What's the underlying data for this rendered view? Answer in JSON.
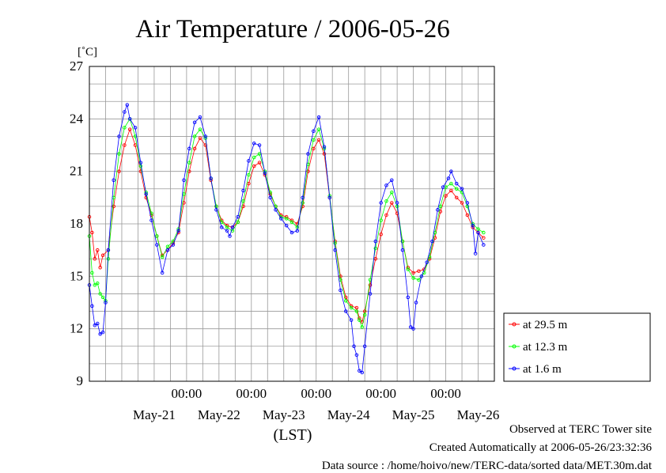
{
  "chart_data": {
    "type": "line",
    "title": "Air Temperature / 2006-05-26",
    "ylabel": "[˚C]",
    "xlabel": "(LST)",
    "ylim": [
      9,
      27
    ],
    "yticks": [
      9,
      12,
      15,
      18,
      21,
      24,
      27
    ],
    "x_domain": [
      "2006-05-20T12:00",
      "2006-05-26T18:00"
    ],
    "x_time_labels": [
      {
        "time": "2006-05-22T00:00",
        "label": "00:00"
      },
      {
        "time": "2006-05-23T00:00",
        "label": "00:00"
      },
      {
        "time": "2006-05-24T00:00",
        "label": "00:00"
      },
      {
        "time": "2006-05-25T00:00",
        "label": "00:00"
      },
      {
        "time": "2006-05-26T00:00",
        "label": "00:00"
      }
    ],
    "x_date_labels": [
      {
        "time": "2006-05-21T12:00",
        "label": "May-21"
      },
      {
        "time": "2006-05-22T12:00",
        "label": "May-22"
      },
      {
        "time": "2006-05-23T12:00",
        "label": "May-23"
      },
      {
        "time": "2006-05-24T12:00",
        "label": "May-24"
      },
      {
        "time": "2006-05-25T12:00",
        "label": "May-25"
      },
      {
        "time": "2006-05-26T12:00",
        "label": "May-26"
      }
    ],
    "grid": true,
    "legend_position": "right-bottom",
    "series": [
      {
        "name": "at 29.5 m",
        "color": "#ff0000",
        "points": [
          [
            "2006-05-20T12:00",
            18.4
          ],
          [
            "2006-05-20T13:00",
            17.5
          ],
          [
            "2006-05-20T14:00",
            16.0
          ],
          [
            "2006-05-20T15:00",
            16.5
          ],
          [
            "2006-05-20T16:00",
            15.5
          ],
          [
            "2006-05-20T17:00",
            16.2
          ],
          [
            "2006-05-20T19:00",
            16.5
          ],
          [
            "2006-05-20T21:00",
            19.0
          ],
          [
            "2006-05-20T23:00",
            21.0
          ],
          [
            "2006-05-21T01:00",
            22.5
          ],
          [
            "2006-05-21T03:00",
            23.4
          ],
          [
            "2006-05-21T05:00",
            22.5
          ],
          [
            "2006-05-21T07:00",
            21.0
          ],
          [
            "2006-05-21T09:00",
            19.5
          ],
          [
            "2006-05-21T11:00",
            18.5
          ],
          [
            "2006-05-21T13:00",
            17.3
          ],
          [
            "2006-05-21T15:00",
            16.2
          ],
          [
            "2006-05-21T17:00",
            16.5
          ],
          [
            "2006-05-21T19:00",
            16.9
          ],
          [
            "2006-05-21T21:00",
            17.5
          ],
          [
            "2006-05-21T23:00",
            19.2
          ],
          [
            "2006-05-22T01:00",
            21.0
          ],
          [
            "2006-05-22T03:00",
            22.3
          ],
          [
            "2006-05-22T05:00",
            22.9
          ],
          [
            "2006-05-22T07:00",
            22.5
          ],
          [
            "2006-05-22T09:00",
            20.5
          ],
          [
            "2006-05-22T11:00",
            19.0
          ],
          [
            "2006-05-22T13:00",
            18.2
          ],
          [
            "2006-05-22T15:00",
            17.9
          ],
          [
            "2006-05-22T17:00",
            17.8
          ],
          [
            "2006-05-22T19:00",
            18.1
          ],
          [
            "2006-05-22T21:00",
            19.0
          ],
          [
            "2006-05-22T23:00",
            20.3
          ],
          [
            "2006-05-23T01:00",
            21.3
          ],
          [
            "2006-05-23T03:00",
            21.5
          ],
          [
            "2006-05-23T05:00",
            20.8
          ],
          [
            "2006-05-23T07:00",
            19.7
          ],
          [
            "2006-05-23T09:00",
            19.0
          ],
          [
            "2006-05-23T11:00",
            18.5
          ],
          [
            "2006-05-23T13:00",
            18.4
          ],
          [
            "2006-05-23T15:00",
            18.2
          ],
          [
            "2006-05-23T17:00",
            18.0
          ],
          [
            "2006-05-23T19:00",
            19.0
          ],
          [
            "2006-05-23T21:00",
            21.0
          ],
          [
            "2006-05-23T23:00",
            22.3
          ],
          [
            "2006-05-24T01:00",
            22.8
          ],
          [
            "2006-05-24T03:00",
            22.0
          ],
          [
            "2006-05-24T05:00",
            19.5
          ],
          [
            "2006-05-24T07:00",
            17.0
          ],
          [
            "2006-05-24T09:00",
            15.0
          ],
          [
            "2006-05-24T11:00",
            13.8
          ],
          [
            "2006-05-24T13:00",
            13.3
          ],
          [
            "2006-05-24T15:00",
            13.2
          ],
          [
            "2006-05-24T16:00",
            12.6
          ],
          [
            "2006-05-24T17:00",
            12.4
          ],
          [
            "2006-05-24T18:00",
            13.0
          ],
          [
            "2006-05-24T20:00",
            14.5
          ],
          [
            "2006-05-24T22:00",
            16.0
          ],
          [
            "2006-05-25T00:00",
            17.4
          ],
          [
            "2006-05-25T02:00",
            18.5
          ],
          [
            "2006-05-25T04:00",
            19.2
          ],
          [
            "2006-05-25T06:00",
            18.6
          ],
          [
            "2006-05-25T08:00",
            17.0
          ],
          [
            "2006-05-25T10:00",
            15.5
          ],
          [
            "2006-05-25T12:00",
            15.2
          ],
          [
            "2006-05-25T14:00",
            15.3
          ],
          [
            "2006-05-25T16:00",
            15.4
          ],
          [
            "2006-05-25T18:00",
            16.0
          ],
          [
            "2006-05-25T20:00",
            17.2
          ],
          [
            "2006-05-25T22:00",
            18.7
          ],
          [
            "2006-05-26T00:00",
            19.6
          ],
          [
            "2006-05-26T02:00",
            19.9
          ],
          [
            "2006-05-26T04:00",
            19.5
          ],
          [
            "2006-05-26T06:00",
            19.2
          ],
          [
            "2006-05-26T08:00",
            18.5
          ],
          [
            "2006-05-26T10:00",
            17.8
          ],
          [
            "2006-05-26T12:00",
            17.5
          ],
          [
            "2006-05-26T14:00",
            17.2
          ]
        ]
      },
      {
        "name": "at 12.3 m",
        "color": "#00ff00",
        "points": [
          [
            "2006-05-20T12:00",
            17.3
          ],
          [
            "2006-05-20T13:00",
            15.2
          ],
          [
            "2006-05-20T14:00",
            14.5
          ],
          [
            "2006-05-20T15:00",
            14.6
          ],
          [
            "2006-05-20T16:00",
            14.0
          ],
          [
            "2006-05-20T17:00",
            13.8
          ],
          [
            "2006-05-20T18:00",
            13.6
          ],
          [
            "2006-05-20T19:00",
            16.0
          ],
          [
            "2006-05-20T21:00",
            19.5
          ],
          [
            "2006-05-20T23:00",
            22.0
          ],
          [
            "2006-05-21T01:00",
            23.5
          ],
          [
            "2006-05-21T03:00",
            24.0
          ],
          [
            "2006-05-21T05:00",
            23.0
          ],
          [
            "2006-05-21T07:00",
            21.3
          ],
          [
            "2006-05-21T09:00",
            19.8
          ],
          [
            "2006-05-21T11:00",
            18.6
          ],
          [
            "2006-05-21T13:00",
            17.3
          ],
          [
            "2006-05-21T15:00",
            16.1
          ],
          [
            "2006-05-21T17:00",
            16.7
          ],
          [
            "2006-05-21T19:00",
            17.0
          ],
          [
            "2006-05-21T21:00",
            17.7
          ],
          [
            "2006-05-21T23:00",
            19.7
          ],
          [
            "2006-05-22T01:00",
            21.5
          ],
          [
            "2006-05-22T03:00",
            23.0
          ],
          [
            "2006-05-22T05:00",
            23.4
          ],
          [
            "2006-05-22T07:00",
            22.9
          ],
          [
            "2006-05-22T09:00",
            20.6
          ],
          [
            "2006-05-22T11:00",
            19.0
          ],
          [
            "2006-05-22T13:00",
            18.1
          ],
          [
            "2006-05-22T15:00",
            17.8
          ],
          [
            "2006-05-22T17:00",
            17.6
          ],
          [
            "2006-05-22T19:00",
            18.1
          ],
          [
            "2006-05-22T21:00",
            19.3
          ],
          [
            "2006-05-22T23:00",
            20.8
          ],
          [
            "2006-05-23T01:00",
            21.8
          ],
          [
            "2006-05-23T03:00",
            22.0
          ],
          [
            "2006-05-23T05:00",
            21.0
          ],
          [
            "2006-05-23T07:00",
            19.8
          ],
          [
            "2006-05-23T09:00",
            19.0
          ],
          [
            "2006-05-23T11:00",
            18.4
          ],
          [
            "2006-05-23T13:00",
            18.3
          ],
          [
            "2006-05-23T15:00",
            18.1
          ],
          [
            "2006-05-23T17:00",
            17.8
          ],
          [
            "2006-05-23T19:00",
            19.2
          ],
          [
            "2006-05-23T21:00",
            21.4
          ],
          [
            "2006-05-23T23:00",
            22.8
          ],
          [
            "2006-05-24T01:00",
            23.4
          ],
          [
            "2006-05-24T03:00",
            22.3
          ],
          [
            "2006-05-24T05:00",
            19.6
          ],
          [
            "2006-05-24T07:00",
            16.9
          ],
          [
            "2006-05-24T09:00",
            14.8
          ],
          [
            "2006-05-24T11:00",
            13.6
          ],
          [
            "2006-05-24T13:00",
            13.2
          ],
          [
            "2006-05-24T15:00",
            13.0
          ],
          [
            "2006-05-24T16:00",
            12.5
          ],
          [
            "2006-05-24T17:00",
            12.1
          ],
          [
            "2006-05-24T18:00",
            12.8
          ],
          [
            "2006-05-24T20:00",
            14.8
          ],
          [
            "2006-05-24T22:00",
            16.6
          ],
          [
            "2006-05-25T00:00",
            18.2
          ],
          [
            "2006-05-25T02:00",
            19.3
          ],
          [
            "2006-05-25T04:00",
            19.8
          ],
          [
            "2006-05-25T06:00",
            19.0
          ],
          [
            "2006-05-25T08:00",
            17.0
          ],
          [
            "2006-05-25T10:00",
            15.4
          ],
          [
            "2006-05-25T12:00",
            14.9
          ],
          [
            "2006-05-25T14:00",
            14.8
          ],
          [
            "2006-05-25T16:00",
            15.2
          ],
          [
            "2006-05-25T18:00",
            16.1
          ],
          [
            "2006-05-25T20:00",
            17.5
          ],
          [
            "2006-05-25T22:00",
            19.0
          ],
          [
            "2006-05-26T00:00",
            20.1
          ],
          [
            "2006-05-26T02:00",
            20.3
          ],
          [
            "2006-05-26T04:00",
            20.0
          ],
          [
            "2006-05-26T06:00",
            19.8
          ],
          [
            "2006-05-26T08:00",
            19.0
          ],
          [
            "2006-05-26T10:00",
            18.0
          ],
          [
            "2006-05-26T12:00",
            17.7
          ],
          [
            "2006-05-26T14:00",
            17.5
          ]
        ]
      },
      {
        "name": "at 1.6 m",
        "color": "#0000ff",
        "points": [
          [
            "2006-05-20T12:00",
            14.5
          ],
          [
            "2006-05-20T13:00",
            13.3
          ],
          [
            "2006-05-20T14:00",
            12.2
          ],
          [
            "2006-05-20T15:00",
            12.3
          ],
          [
            "2006-05-20T16:00",
            11.7
          ],
          [
            "2006-05-20T17:00",
            11.8
          ],
          [
            "2006-05-20T18:00",
            13.5
          ],
          [
            "2006-05-20T19:00",
            16.5
          ],
          [
            "2006-05-20T21:00",
            20.5
          ],
          [
            "2006-05-20T23:00",
            23.0
          ],
          [
            "2006-05-21T01:00",
            24.4
          ],
          [
            "2006-05-21T02:00",
            24.8
          ],
          [
            "2006-05-21T03:00",
            24.0
          ],
          [
            "2006-05-21T05:00",
            23.5
          ],
          [
            "2006-05-21T07:00",
            21.5
          ],
          [
            "2006-05-21T09:00",
            19.7
          ],
          [
            "2006-05-21T11:00",
            18.2
          ],
          [
            "2006-05-21T13:00",
            16.8
          ],
          [
            "2006-05-21T15:00",
            15.2
          ],
          [
            "2006-05-21T17:00",
            16.5
          ],
          [
            "2006-05-21T19:00",
            16.8
          ],
          [
            "2006-05-21T21:00",
            17.6
          ],
          [
            "2006-05-21T23:00",
            20.5
          ],
          [
            "2006-05-22T01:00",
            22.3
          ],
          [
            "2006-05-22T03:00",
            23.8
          ],
          [
            "2006-05-22T05:00",
            24.1
          ],
          [
            "2006-05-22T07:00",
            23.0
          ],
          [
            "2006-05-22T09:00",
            20.6
          ],
          [
            "2006-05-22T11:00",
            18.8
          ],
          [
            "2006-05-22T13:00",
            17.8
          ],
          [
            "2006-05-22T15:00",
            17.6
          ],
          [
            "2006-05-22T16:00",
            17.3
          ],
          [
            "2006-05-22T17:00",
            17.8
          ],
          [
            "2006-05-22T19:00",
            18.4
          ],
          [
            "2006-05-22T21:00",
            19.9
          ],
          [
            "2006-05-22T23:00",
            21.6
          ],
          [
            "2006-05-23T01:00",
            22.6
          ],
          [
            "2006-05-23T03:00",
            22.5
          ],
          [
            "2006-05-23T05:00",
            20.9
          ],
          [
            "2006-05-23T07:00",
            19.5
          ],
          [
            "2006-05-23T09:00",
            18.8
          ],
          [
            "2006-05-23T11:00",
            18.3
          ],
          [
            "2006-05-23T13:00",
            17.9
          ],
          [
            "2006-05-23T15:00",
            17.5
          ],
          [
            "2006-05-23T17:00",
            17.6
          ],
          [
            "2006-05-23T19:00",
            19.5
          ],
          [
            "2006-05-23T21:00",
            22.0
          ],
          [
            "2006-05-23T23:00",
            23.3
          ],
          [
            "2006-05-24T01:00",
            24.1
          ],
          [
            "2006-05-24T03:00",
            22.4
          ],
          [
            "2006-05-24T05:00",
            19.5
          ],
          [
            "2006-05-24T07:00",
            16.5
          ],
          [
            "2006-05-24T09:00",
            14.2
          ],
          [
            "2006-05-24T11:00",
            13.0
          ],
          [
            "2006-05-24T13:00",
            12.5
          ],
          [
            "2006-05-24T14:00",
            11.0
          ],
          [
            "2006-05-24T15:00",
            10.5
          ],
          [
            "2006-05-24T16:00",
            9.6
          ],
          [
            "2006-05-24T17:00",
            9.5
          ],
          [
            "2006-05-24T18:00",
            11.0
          ],
          [
            "2006-05-24T20:00",
            14.0
          ],
          [
            "2006-05-24T22:00",
            17.0
          ],
          [
            "2006-05-25T00:00",
            19.2
          ],
          [
            "2006-05-25T02:00",
            20.2
          ],
          [
            "2006-05-25T04:00",
            20.5
          ],
          [
            "2006-05-25T06:00",
            19.2
          ],
          [
            "2006-05-25T08:00",
            16.5
          ],
          [
            "2006-05-25T10:00",
            13.8
          ],
          [
            "2006-05-25T11:00",
            12.1
          ],
          [
            "2006-05-25T12:00",
            12.0
          ],
          [
            "2006-05-25T13:00",
            13.5
          ],
          [
            "2006-05-25T15:00",
            15.0
          ],
          [
            "2006-05-25T17:00",
            15.8
          ],
          [
            "2006-05-25T19:00",
            17.0
          ],
          [
            "2006-05-25T21:00",
            18.8
          ],
          [
            "2006-05-25T23:00",
            20.1
          ],
          [
            "2006-05-26T01:00",
            20.6
          ],
          [
            "2006-05-26T02:00",
            21.0
          ],
          [
            "2006-05-26T04:00",
            20.3
          ],
          [
            "2006-05-26T06:00",
            20.0
          ],
          [
            "2006-05-26T08:00",
            19.2
          ],
          [
            "2006-05-26T10:00",
            17.9
          ],
          [
            "2006-05-26T11:00",
            16.3
          ],
          [
            "2006-05-26T12:00",
            17.5
          ],
          [
            "2006-05-26T14:00",
            16.8
          ]
        ]
      }
    ]
  },
  "footer": {
    "observed": "Observed at TERC Tower site",
    "created": "Created Automatically at 2006-05-26/23:32:36",
    "source": "Data source : /home/hoivo/new/TERC-data/sorted  data/MET.30m.dat"
  }
}
